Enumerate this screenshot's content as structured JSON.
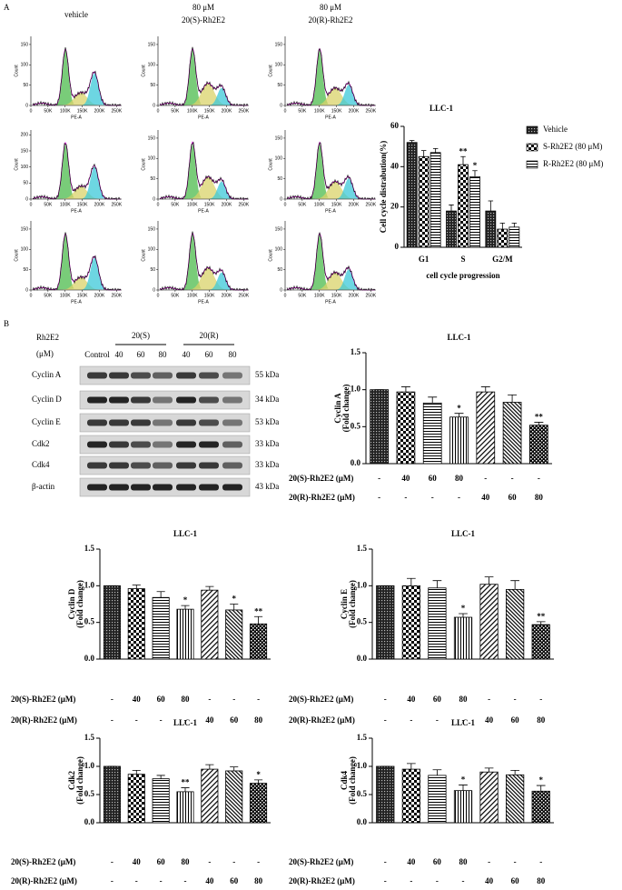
{
  "panels": {
    "a": "A",
    "b": "B"
  },
  "flow": {
    "columns": [
      [
        "vehicle"
      ],
      [
        "80 μM",
        "20(S)-Rh2E2"
      ],
      [
        "80 μM",
        "20(R)-Rh2E2"
      ]
    ],
    "xlabel": "PE-A",
    "ylabel": "Count",
    "xlim": [
      0,
      265000
    ],
    "xticks": [
      0,
      {
        "value": 50000,
        "label": "50K"
      },
      {
        "value": 100000,
        "label": "100K"
      },
      {
        "value": 150000,
        "label": "150K"
      },
      {
        "value": 200000,
        "label": "200K"
      },
      {
        "value": 250000,
        "label": "250K"
      }
    ],
    "plots": [
      {
        "ylim": [
          0,
          170
        ],
        "yticks": [
          0,
          50,
          100,
          150
        ]
      },
      {
        "ylim": [
          0,
          170
        ],
        "yticks": [
          0,
          50,
          100,
          150
        ]
      },
      {
        "ylim": [
          0,
          170
        ],
        "yticks": [
          0,
          50,
          100,
          150
        ]
      },
      {
        "ylim": [
          0,
          215
        ],
        "yticks": [
          0,
          50,
          100,
          150,
          200
        ]
      },
      {
        "ylim": [
          0,
          170
        ],
        "yticks": [
          0,
          50,
          100,
          150
        ]
      },
      {
        "ylim": [
          0,
          170
        ],
        "yticks": [
          0,
          50,
          100,
          150
        ]
      },
      {
        "ylim": [
          0,
          170
        ],
        "yticks": [
          0,
          50,
          100,
          150
        ]
      },
      {
        "ylim": [
          0,
          170
        ],
        "yticks": [
          0,
          50,
          100,
          150
        ]
      },
      {
        "ylim": [
          0,
          170
        ],
        "yticks": [
          0,
          50,
          100,
          150
        ]
      }
    ]
  },
  "blot": {
    "header": [
      "Rh2E2",
      "(μM)"
    ],
    "groups": [
      "20(S)",
      "20(R)"
    ],
    "lanes": [
      "Control",
      "40",
      "60",
      "80",
      "40",
      "60",
      "80"
    ],
    "rows": [
      {
        "protein": "Cyclin A",
        "size": "55 kDa"
      },
      {
        "protein": "Cyclin D",
        "size": "34 kDa"
      },
      {
        "protein": "Cyclin E",
        "size": "53 kDa"
      },
      {
        "protein": "Cdk2",
        "size": "33 kDa"
      },
      {
        "protein": "Cdk4",
        "size": "33 kDa"
      },
      {
        "protein": "β-actin",
        "size": "43 kDa"
      }
    ]
  },
  "chart_data": [
    {
      "type": "grouped-bar",
      "title": "LLC-1",
      "ylabel": "Cell cycle distrabution(%)",
      "xlabel": "cell cycle progression",
      "categories": [
        "G1",
        "S",
        "G2/M"
      ],
      "ylim": [
        0,
        60
      ],
      "yticks": [
        0,
        20,
        40,
        60
      ],
      "series": [
        {
          "name": "Vehicle",
          "values": [
            52,
            18,
            18
          ],
          "errors": [
            1,
            3,
            5
          ],
          "annotations": [
            null,
            null,
            null
          ]
        },
        {
          "name": "S-Rh2E2 (80 μM)",
          "values": [
            45,
            41,
            9
          ],
          "errors": [
            3,
            4,
            3
          ],
          "annotations": [
            null,
            "**",
            null
          ]
        },
        {
          "name": "R-Rh2E2 (80 μM)",
          "values": [
            47,
            35,
            10
          ],
          "errors": [
            2,
            3,
            2
          ],
          "annotations": [
            null,
            "*",
            null
          ]
        }
      ]
    },
    {
      "type": "bar",
      "title": "LLC-1",
      "ylabel": "Cyclin A",
      "ylabel_sub": "(Fold change)",
      "ylim": [
        0,
        1.5
      ],
      "yticks": [
        {
          "value": 0,
          "label": "0.0"
        },
        0.5,
        {
          "value": 1,
          "label": "1.0"
        },
        1.5
      ],
      "values": [
        1.0,
        0.97,
        0.82,
        0.63,
        0.97,
        0.83,
        0.52
      ],
      "errors": [
        0,
        0.07,
        0.08,
        0.05,
        0.07,
        0.1,
        0.04
      ],
      "annotations": [
        null,
        null,
        null,
        "*",
        null,
        null,
        "**"
      ],
      "treatments": [
        {
          "label": "20(S)-Rh2E2 (μM)",
          "doses": [
            "-",
            "40",
            "60",
            "80",
            "-",
            "-",
            "-"
          ]
        },
        {
          "label": "20(R)-Rh2E2 (μM)",
          "doses": [
            "-",
            "-",
            "-",
            "-",
            "40",
            "60",
            "80"
          ]
        }
      ]
    },
    {
      "type": "bar",
      "title": "LLC-1",
      "ylabel": "Cyclin D",
      "ylabel_sub": "(Fold change)",
      "ylim": [
        0,
        1.5
      ],
      "yticks": [
        {
          "value": 0,
          "label": "0.0"
        },
        0.5,
        {
          "value": 1,
          "label": "1.0"
        },
        1.5
      ],
      "values": [
        1.0,
        0.96,
        0.84,
        0.68,
        0.94,
        0.67,
        0.48
      ],
      "errors": [
        0,
        0.05,
        0.08,
        0.05,
        0.05,
        0.08,
        0.1
      ],
      "annotations": [
        null,
        null,
        null,
        "*",
        null,
        "*",
        "**"
      ],
      "treatments": [
        {
          "label": "20(S)-Rh2E2 (μM)",
          "doses": [
            "-",
            "40",
            "60",
            "80",
            "-",
            "-",
            "-"
          ]
        },
        {
          "label": "20(R)-Rh2E2 (μM)",
          "doses": [
            "-",
            "-",
            "-",
            "-",
            "40",
            "60",
            "80"
          ]
        }
      ]
    },
    {
      "type": "bar",
      "title": "LLC-1",
      "ylabel": "Cyclin E",
      "ylabel_sub": "(Fold change)",
      "ylim": [
        0,
        1.5
      ],
      "yticks": [
        {
          "value": 0,
          "label": "0.0"
        },
        0.5,
        {
          "value": 1,
          "label": "1.0"
        },
        1.5
      ],
      "values": [
        1.0,
        1.0,
        0.97,
        0.57,
        1.02,
        0.95,
        0.47
      ],
      "errors": [
        0,
        0.1,
        0.1,
        0.05,
        0.1,
        0.12,
        0.04
      ],
      "annotations": [
        null,
        null,
        null,
        "*",
        null,
        null,
        "**"
      ],
      "treatments": [
        {
          "label": "20(S)-Rh2E2 (μM)",
          "doses": [
            "-",
            "40",
            "60",
            "80",
            "-",
            "-",
            "-"
          ]
        },
        {
          "label": "20(R)-Rh2E2 (μM)",
          "doses": [
            "-",
            "-",
            "-",
            "-",
            "40",
            "60",
            "80"
          ]
        }
      ]
    },
    {
      "type": "bar",
      "title": "LLC-1",
      "ylabel": "Cdk2",
      "ylabel_sub": "(Fold change)",
      "ylim": [
        0,
        1.5
      ],
      "yticks": [
        {
          "value": 0,
          "label": "0.0"
        },
        0.5,
        {
          "value": 1,
          "label": "1.0"
        },
        1.5
      ],
      "values": [
        1.0,
        0.86,
        0.78,
        0.55,
        0.95,
        0.92,
        0.7
      ],
      "errors": [
        0,
        0.07,
        0.06,
        0.07,
        0.08,
        0.07,
        0.06
      ],
      "annotations": [
        null,
        null,
        null,
        "**",
        null,
        null,
        "*"
      ],
      "treatments": [
        {
          "label": "20(S)-Rh2E2 (μM)",
          "doses": [
            "-",
            "40",
            "60",
            "80",
            "-",
            "-",
            "-"
          ]
        },
        {
          "label": "20(R)-Rh2E2 (μM)",
          "doses": [
            "-",
            "-",
            "-",
            "-",
            "40",
            "60",
            "80"
          ]
        }
      ]
    },
    {
      "type": "bar",
      "title": "LLC-1",
      "ylabel": "Cdk4",
      "ylabel_sub": "(Fold change)",
      "ylim": [
        0,
        1.5
      ],
      "yticks": [
        {
          "value": 0,
          "label": "0.0"
        },
        0.5,
        {
          "value": 1,
          "label": "1.0"
        },
        1.5
      ],
      "values": [
        1.0,
        0.95,
        0.84,
        0.57,
        0.9,
        0.85,
        0.56
      ],
      "errors": [
        0,
        0.1,
        0.1,
        0.1,
        0.07,
        0.08,
        0.1
      ],
      "annotations": [
        null,
        null,
        null,
        "*",
        null,
        null,
        "*"
      ],
      "treatments": [
        {
          "label": "20(S)-Rh2E2 (μM)",
          "doses": [
            "-",
            "40",
            "60",
            "80",
            "-",
            "-",
            "-"
          ]
        },
        {
          "label": "20(R)-Rh2E2 (μM)",
          "doses": [
            "-",
            "-",
            "-",
            "-",
            "40",
            "60",
            "80"
          ]
        }
      ]
    }
  ]
}
